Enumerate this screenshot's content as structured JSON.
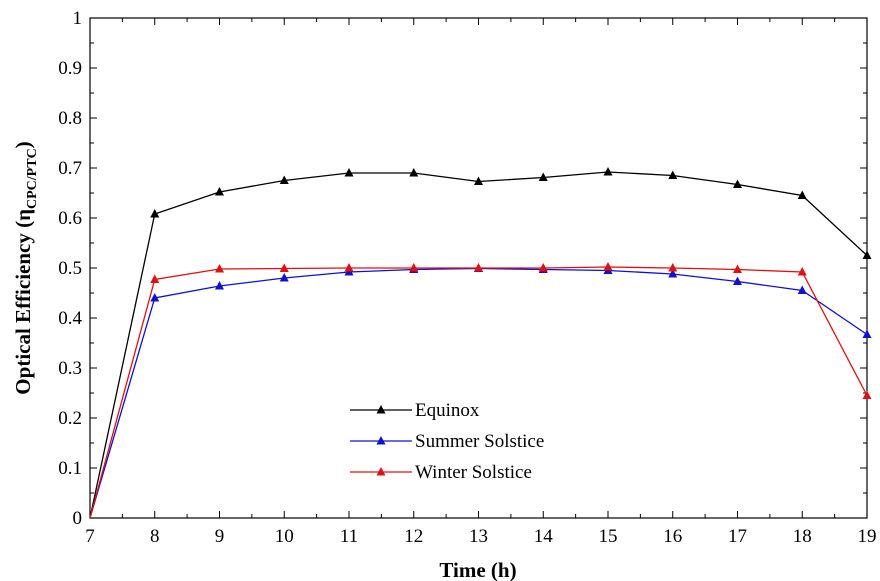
{
  "chart_data": {
    "type": "line",
    "title": "",
    "xlabel": "Time (h)",
    "ylabel": {
      "main": "Optical Efficiency (η",
      "subscript": "CPC/PTC",
      "close": ")"
    },
    "xlim": [
      7,
      19
    ],
    "ylim": [
      0,
      1
    ],
    "xticks": [
      "7",
      "8",
      "9",
      "10",
      "11",
      "12",
      "13",
      "14",
      "15",
      "16",
      "17",
      "18",
      "19"
    ],
    "yticks": [
      "0",
      "0.1",
      "0.2",
      "0.3",
      "0.4",
      "0.5",
      "0.6",
      "0.7",
      "0.8",
      "0.9",
      "1"
    ],
    "grid": false,
    "legend_position": "bottom-center",
    "x": [
      7,
      8,
      9,
      10,
      11,
      12,
      13,
      14,
      15,
      16,
      17,
      18,
      19
    ],
    "series": [
      {
        "name": "Equinox",
        "color": "#000000",
        "marker": "triangle",
        "values": [
          0,
          0.608,
          0.652,
          0.675,
          0.69,
          0.69,
          0.673,
          0.681,
          0.692,
          0.685,
          0.667,
          0.645,
          0.525
        ]
      },
      {
        "name": "Summer Solstice",
        "color": "#1010d0",
        "marker": "triangle",
        "values": [
          0,
          0.44,
          0.464,
          0.48,
          0.492,
          0.497,
          0.499,
          0.497,
          0.495,
          0.488,
          0.473,
          0.455,
          0.367
        ]
      },
      {
        "name": "Winter Solstice",
        "color": "#e01010",
        "marker": "triangle",
        "values": [
          0,
          0.477,
          0.498,
          0.499,
          0.5,
          0.5,
          0.5,
          0.5,
          0.502,
          0.5,
          0.497,
          0.492,
          0.245
        ]
      }
    ]
  }
}
